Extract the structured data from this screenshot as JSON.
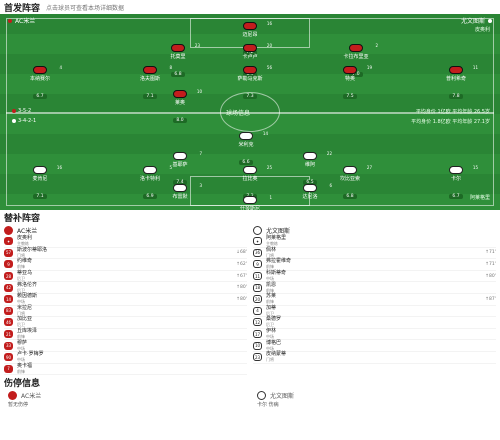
{
  "header": {
    "title": "首发阵容",
    "subtitle": "点击球员可查看本场详细数据"
  },
  "pitch": {
    "home_name": "AC米兰",
    "away_name": "尤文图斯",
    "home_formation_label": "3-5-2",
    "away_formation_label": "3-4-2-1",
    "home_avg_age": "平均身价 1亿欧",
    "home_avg_value": "平均年龄 26.5岁",
    "away_avg_age": "平均身价 1.8亿欧",
    "away_avg_value": "平均年龄 27.1岁",
    "coach_home": "皮奥利",
    "coach_away": "阿莱格里",
    "center_label": "球场信息",
    "center_score": "1 - 0"
  },
  "home_players": [
    {
      "n": "16",
      "name": "迈尼昂",
      "rate": "7.2"
    },
    {
      "n": "23",
      "name": "托莫里",
      "rate": "6.8"
    },
    {
      "n": "20",
      "name": "卡卢卢",
      "rate": "6.9"
    },
    {
      "n": "2",
      "name": "卡拉布里亚",
      "rate": "7.0"
    },
    {
      "n": "4",
      "name": "本纳赛尔",
      "rate": "6.7"
    },
    {
      "n": "8",
      "name": "洛夫图斯",
      "rate": "7.1"
    },
    {
      "n": "56",
      "name": "萨勒马克斯",
      "rate": "7.3"
    },
    {
      "n": "19",
      "name": "特奥",
      "rate": "7.5"
    },
    {
      "n": "11",
      "name": "普利希奇",
      "rate": "7.8"
    },
    {
      "n": "10",
      "name": "莱奥",
      "rate": "8.0"
    }
  ],
  "away_players": [
    {
      "n": "14",
      "name": "米利克",
      "rate": "6.6"
    },
    {
      "n": "7",
      "name": "基耶萨",
      "rate": "7.4"
    },
    {
      "n": "22",
      "name": "维阿",
      "rate": "6.5"
    },
    {
      "n": "16",
      "name": "麦肯尼",
      "rate": "7.1"
    },
    {
      "n": "5",
      "name": "洛卡特利",
      "rate": "6.9"
    },
    {
      "n": "25",
      "name": "拉比奥",
      "rate": "7.2"
    },
    {
      "n": "27",
      "name": "坎比亚索",
      "rate": "6.8"
    },
    {
      "n": "15",
      "name": "卡尔",
      "rate": "6.7"
    },
    {
      "n": "3",
      "name": "布雷默",
      "rate": "7.0"
    },
    {
      "n": "6",
      "name": "达尼洛",
      "rate": "6.9"
    },
    {
      "n": "1",
      "name": "什琴斯尼",
      "rate": "7.3"
    }
  ],
  "subs": {
    "title": "替补阵容",
    "home_team": "AC米兰",
    "away_team": "尤文图斯",
    "home_coach": "皮奥利",
    "home_coach_role": "主教练",
    "away_coach": "阿莱格里",
    "away_coach_role": "主教练",
    "home": [
      {
        "n": "57",
        "name": "斯波尔蒂耶洛",
        "pos": "门将",
        "evt": "↓68'"
      },
      {
        "n": "9",
        "name": "约维奇",
        "pos": "前锋",
        "evt": "↑62'"
      },
      {
        "n": "28",
        "name": "蒂亚乌",
        "pos": "后卫",
        "evt": "↑67'"
      },
      {
        "n": "42",
        "name": "弗洛伦齐",
        "pos": "后卫",
        "evt": "↑80'"
      },
      {
        "n": "14",
        "name": "赖因德斯",
        "pos": "中场",
        "evt": "↑80'"
      },
      {
        "n": "83",
        "name": "米拉尼",
        "pos": "门将",
        "evt": ""
      },
      {
        "n": "46",
        "name": "加比亚",
        "pos": "后卫",
        "evt": ""
      },
      {
        "n": "21",
        "name": "丘库埃泽",
        "pos": "前锋",
        "evt": ""
      },
      {
        "n": "33",
        "name": "穆萨",
        "pos": "中场",
        "evt": ""
      },
      {
        "n": "90",
        "name": "卢卡·罗梅罗",
        "pos": "中场",
        "evt": ""
      },
      {
        "n": "7",
        "name": "奥卡福",
        "pos": "前锋",
        "evt": ""
      }
    ],
    "away": [
      {
        "n": "36",
        "name": "佩林",
        "pos": "门将",
        "evt": "↑71'"
      },
      {
        "n": "9",
        "name": "弗拉霍维奇",
        "pos": "前锋",
        "evt": "↑71'"
      },
      {
        "n": "11",
        "name": "科斯蒂奇",
        "pos": "中场",
        "evt": "↑80'"
      },
      {
        "n": "18",
        "name": "凯恩",
        "pos": "前锋",
        "evt": ""
      },
      {
        "n": "20",
        "name": "苏莱",
        "pos": "前锋",
        "evt": "↑87'"
      },
      {
        "n": "4",
        "name": "加蒂",
        "pos": "后卫",
        "evt": ""
      },
      {
        "n": "12",
        "name": "桑德罗",
        "pos": "后卫",
        "evt": ""
      },
      {
        "n": "17",
        "name": "伊林",
        "pos": "中场",
        "evt": ""
      },
      {
        "n": "10",
        "name": "博格巴",
        "pos": "中场",
        "evt": ""
      },
      {
        "n": "23",
        "name": "皮纳蒙蒂",
        "pos": "门将",
        "evt": ""
      }
    ]
  },
  "injury": {
    "title": "伤停信息",
    "home_team": "AC米兰",
    "away_team": "尤文图斯",
    "home_note": "暂无伤停",
    "away_note": "卡尔 伤病"
  },
  "colors": {
    "pitch": "#2f8f3a",
    "home": "#c21d1d",
    "away": "#ffffff"
  }
}
